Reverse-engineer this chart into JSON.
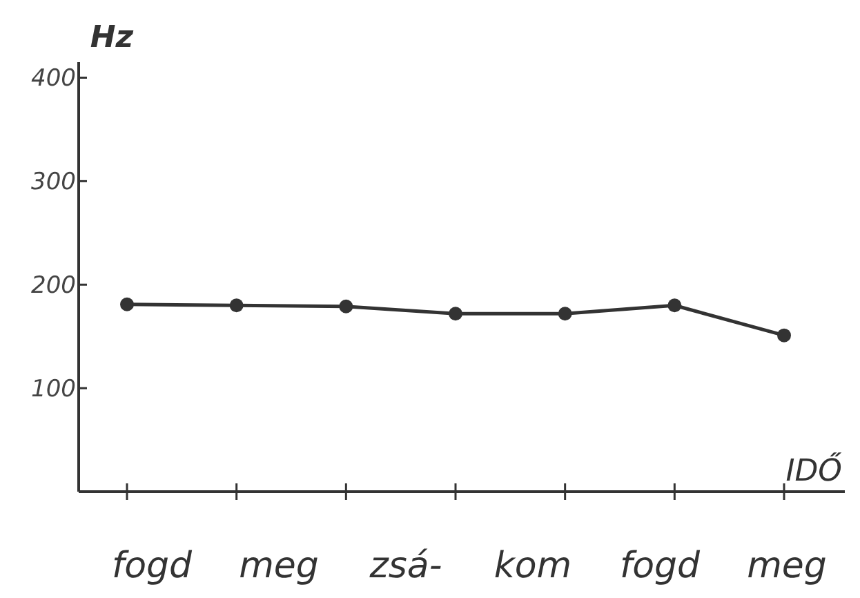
{
  "chart_data": {
    "type": "line",
    "ylabel": "Hz",
    "xlabel": "IDŐ",
    "categories": [
      null,
      null,
      null,
      null,
      null,
      null,
      null
    ],
    "values": [
      181,
      180,
      179,
      172,
      172,
      180,
      151
    ],
    "color": "#333333",
    "marker": "circle",
    "line_style": "solid",
    "grid": false,
    "ylim": [
      0,
      415
    ],
    "yticks": [
      100,
      200,
      300,
      400
    ],
    "annotations": [
      "fogd",
      "meg",
      "zsá-",
      "kom",
      "fogd",
      "meg"
    ]
  }
}
